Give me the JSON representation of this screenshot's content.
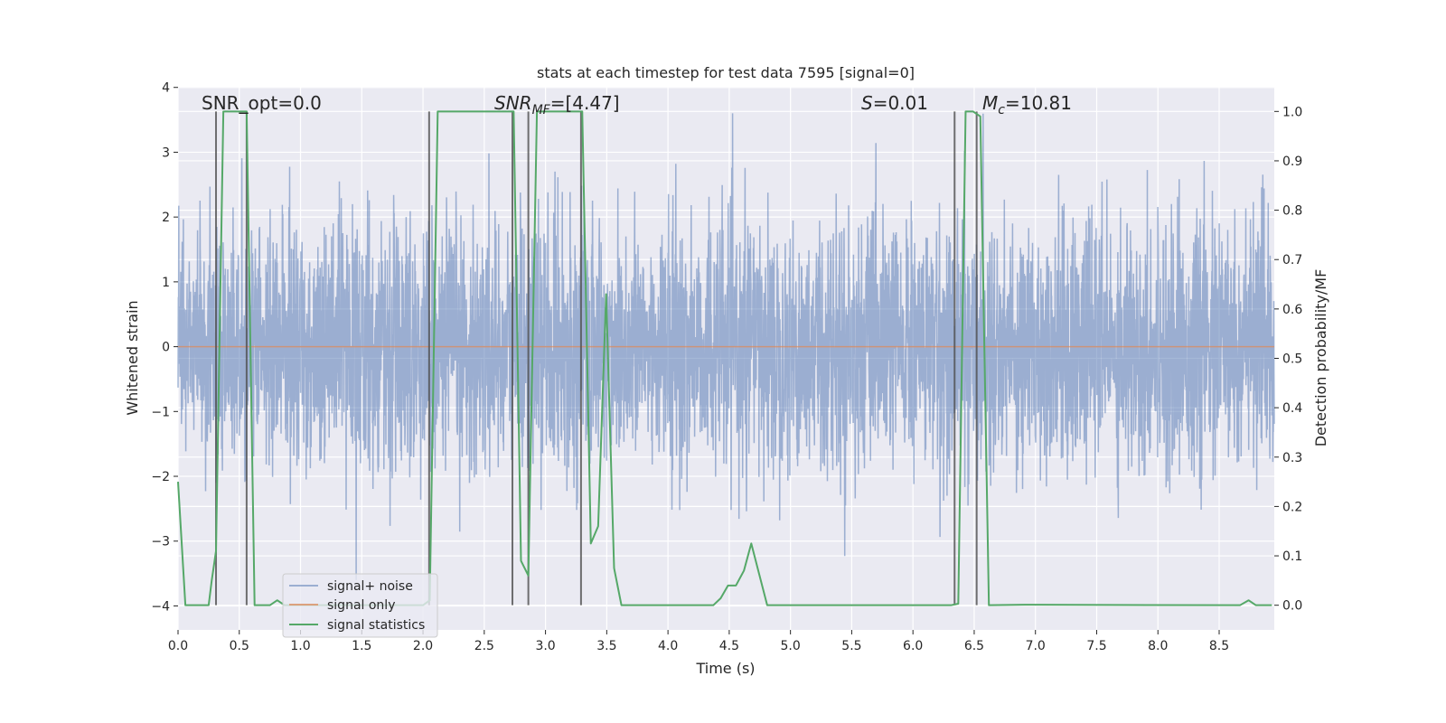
{
  "chart_data": {
    "type": "line",
    "title": "stats at each timestep for test data 7595 [signal=0]",
    "xlabel": "Time (s)",
    "ylabel": "Whitened strain",
    "ylabel_right": "Detection probability/MF",
    "xlim": [
      0,
      8.95
    ],
    "ylim": [
      -4.37,
      4.01
    ],
    "ylim_right": [
      -0.05,
      1.05
    ],
    "grid": true,
    "legend_position": "lower-left",
    "x_ticks": [
      "0.0",
      "0.5",
      "1.0",
      "1.5",
      "2.0",
      "2.5",
      "3.0",
      "3.5",
      "4.0",
      "4.5",
      "5.0",
      "5.5",
      "6.0",
      "6.5",
      "7.0",
      "7.5",
      "8.0",
      "8.5"
    ],
    "y_ticks": [
      "−4",
      "−3",
      "−2",
      "−1",
      "0",
      "1",
      "2",
      "3",
      "4"
    ],
    "y_ticks_right": [
      "0.0",
      "0.1",
      "0.2",
      "0.3",
      "0.4",
      "0.5",
      "0.6",
      "0.7",
      "0.8",
      "0.9",
      "1.0"
    ],
    "annotations": {
      "snr_opt": "SNR_opt=0.0",
      "snr_mf_main": "SNR",
      "snr_mf_sub": "MF",
      "snr_mf_value": "=[4.47]",
      "s_main": "S",
      "s_value": "=0.01",
      "mc_main": "M",
      "mc_sub": "c",
      "mc_value": "=10.81"
    },
    "series": [
      {
        "name": "signal+ noise",
        "color": "#4C72B0",
        "axis": "left",
        "description_values": "dense whitened noise, roughly ±1.3 core with spikes to about ±3.5"
      },
      {
        "name": "signal only",
        "color": "#DD8452",
        "axis": "left",
        "x": [
          0,
          8.95
        ],
        "y": [
          0,
          0
        ]
      },
      {
        "name": "signal statistics",
        "color": "#55A868",
        "axis": "right",
        "x": [
          0.0,
          0.06,
          0.25,
          0.275,
          0.31,
          0.37,
          0.56,
          0.625,
          0.69,
          0.75,
          0.81,
          0.87,
          2.0,
          2.055,
          2.12,
          2.74,
          2.8,
          2.86,
          2.93,
          3.3,
          3.37,
          3.43,
          3.495,
          3.56,
          3.62,
          4.37,
          4.43,
          4.49,
          4.555,
          4.62,
          4.68,
          4.81,
          6.31,
          6.37,
          6.43,
          6.49,
          6.55,
          6.62,
          6.91,
          8.67,
          8.74,
          8.8,
          8.93
        ],
        "y": [
          0.25,
          0.0,
          0.0,
          0.05,
          0.11,
          1.0,
          1.0,
          0.0,
          0.0,
          0.0,
          0.01,
          0.0,
          0.0,
          0.01,
          1.0,
          1.0,
          0.09,
          0.06,
          1.0,
          1.0,
          0.125,
          0.16,
          0.63,
          0.075,
          0.0,
          0.0,
          0.014,
          0.04,
          0.04,
          0.07,
          0.125,
          0.0,
          0.0,
          0.003,
          1.0,
          1.0,
          0.99,
          0.0,
          0.001,
          0.0,
          0.01,
          0.0,
          0.0
        ]
      }
    ],
    "vertical_markers": {
      "color": "#4d4d4d",
      "x": [
        0.31,
        0.56,
        2.05,
        2.73,
        2.86,
        3.29,
        6.34,
        6.52
      ],
      "y_range_right": [
        0,
        1
      ]
    }
  }
}
